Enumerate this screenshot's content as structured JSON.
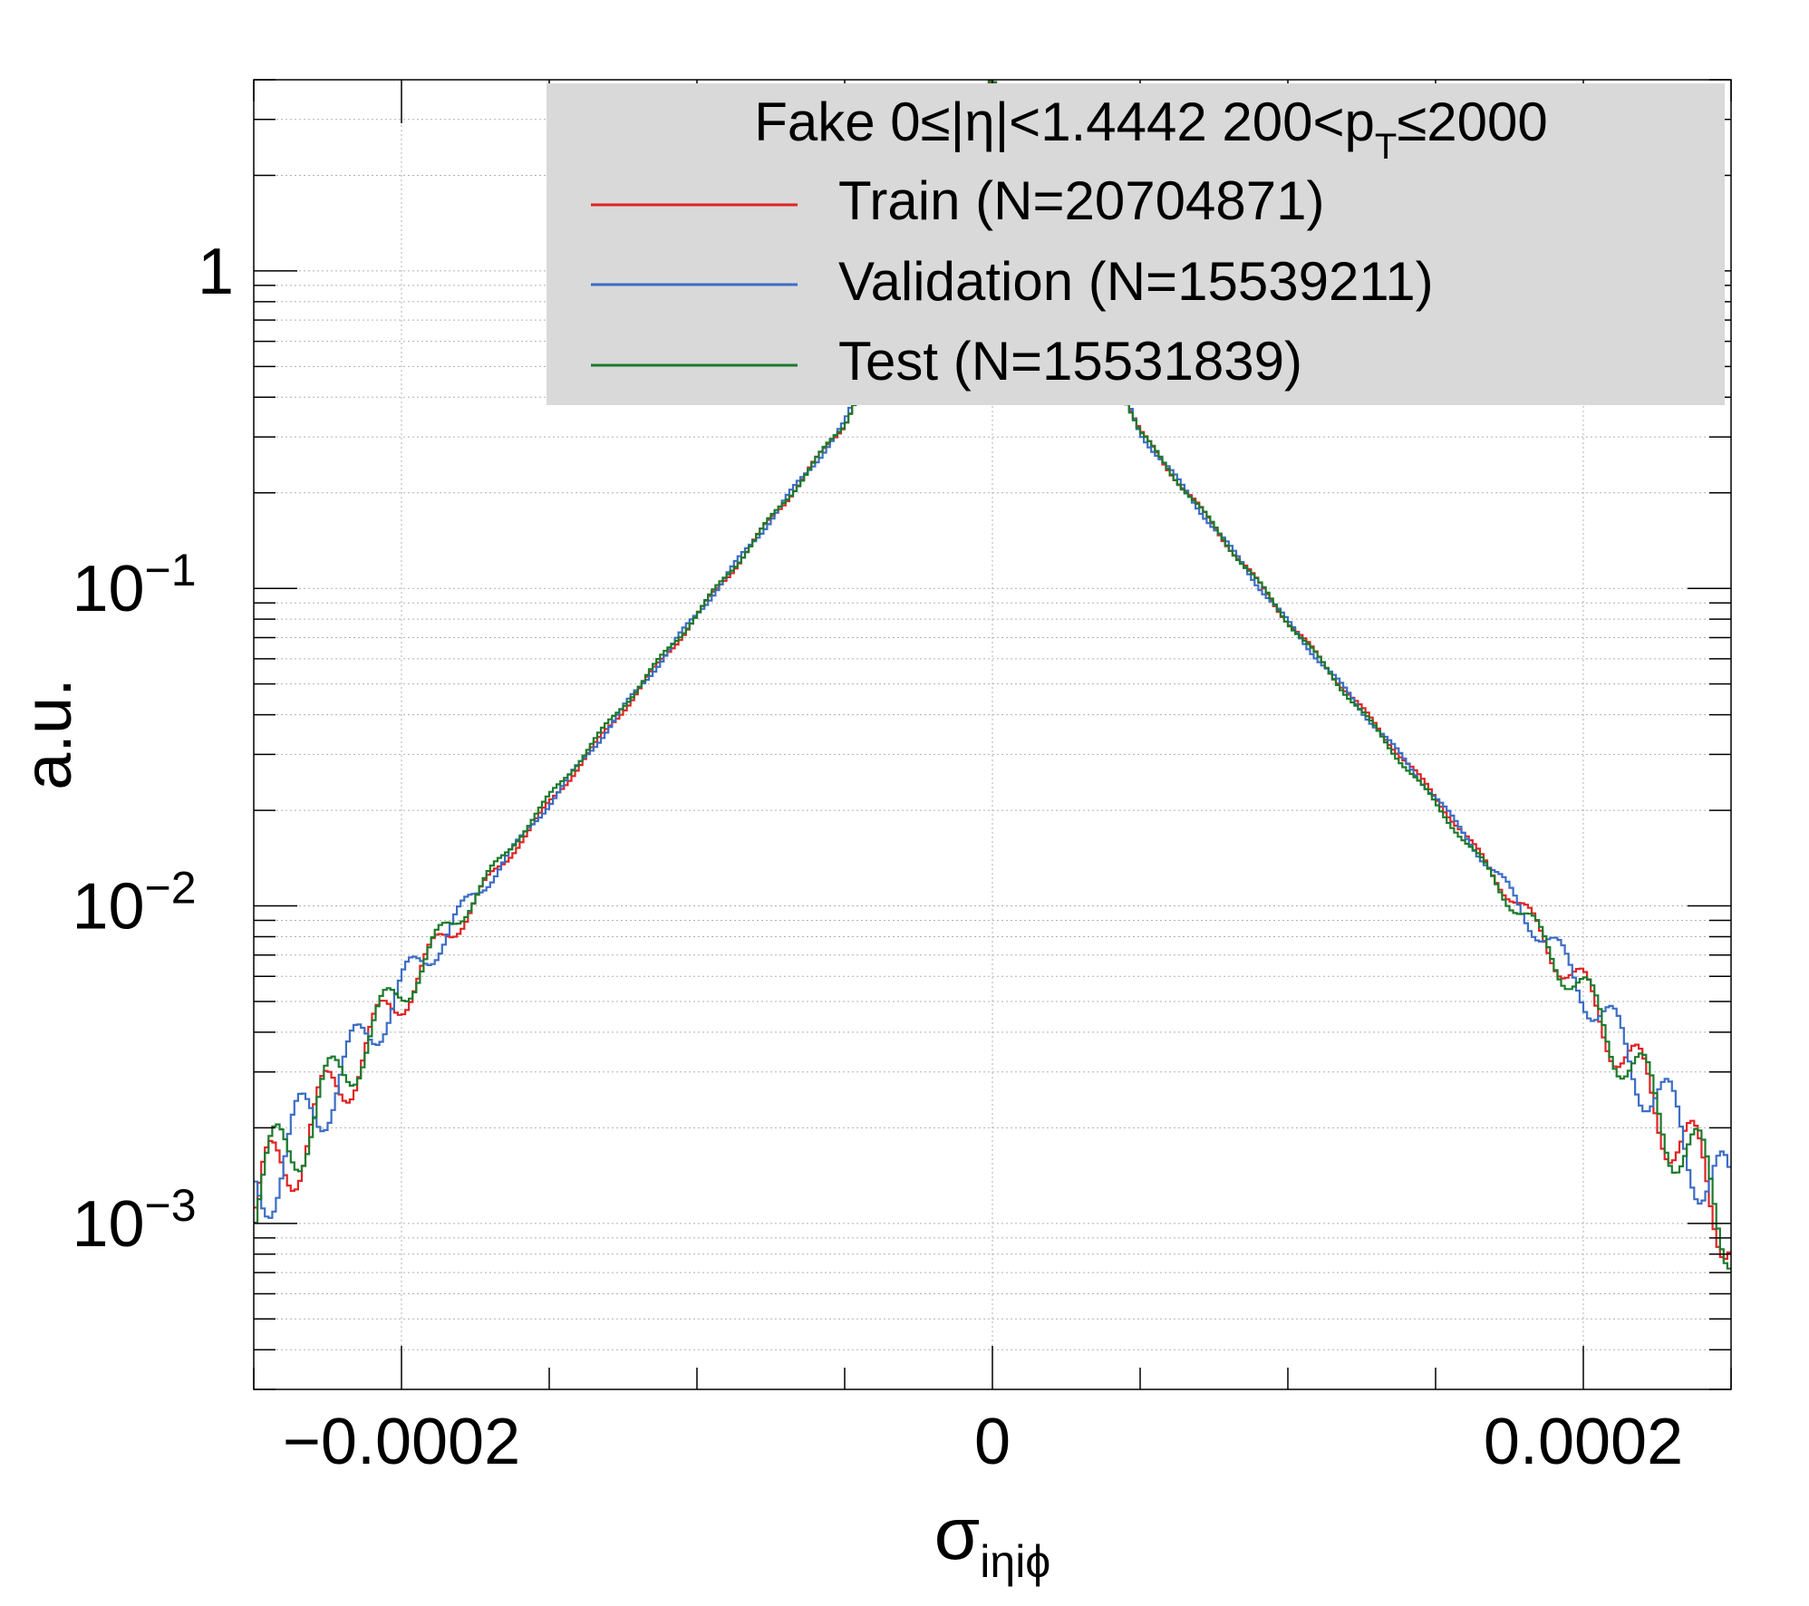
{
  "chart_data": {
    "type": "line",
    "title": "",
    "xlabel_main": "σ",
    "xlabel_sub": "iηiϕ",
    "ylabel": "a.u.",
    "x_range": [
      -0.00025,
      0.00025
    ],
    "y_range": [
      0.0003,
      4.0
    ],
    "y_scale": "log",
    "grid": true,
    "x_ticks": [
      {
        "value": -0.0002,
        "label": "−0.0002"
      },
      {
        "value": 0,
        "label": "0"
      },
      {
        "value": 0.0002,
        "label": "0.0002"
      }
    ],
    "y_ticks": [
      {
        "value": 0.001,
        "base": "10",
        "exp": "−3"
      },
      {
        "value": 0.01,
        "base": "10",
        "exp": "−2"
      },
      {
        "value": 0.1,
        "base": "10",
        "exp": "−1"
      },
      {
        "value": 1,
        "base": "1",
        "exp": ""
      }
    ],
    "legend": {
      "placement": "top-right",
      "header_main": "Fake  0≤|η|<1.4442  200<p",
      "header_sub": "T",
      "header_tail": "≤2000",
      "entries": [
        {
          "label": "Train (N=20704871)",
          "color": "#e02424"
        },
        {
          "label": "Validation (N=15539211)",
          "color": "#3c6dc5"
        },
        {
          "label": "Test (N=15531839)",
          "color": "#1c7a2c"
        }
      ]
    },
    "x": [
      -0.00025,
      -0.0002,
      -0.00015,
      -0.0001,
      -5e-05,
      0,
      5e-05,
      0.0001,
      0.00015,
      0.0002,
      0.00025
    ],
    "series": [
      {
        "name": "Train (N=20704871)",
        "color": "#e02424",
        "values": [
          0.0011,
          0.0052,
          0.021,
          0.082,
          0.33,
          4.0,
          0.31,
          0.079,
          0.022,
          0.0054,
          0.001
        ]
      },
      {
        "name": "Validation (N=15539211)",
        "color": "#3c6dc5",
        "values": [
          0.0012,
          0.0055,
          0.021,
          0.083,
          0.33,
          4.0,
          0.31,
          0.078,
          0.022,
          0.0055,
          0.0011
        ]
      },
      {
        "name": "Test (N=15531839)",
        "color": "#1c7a2c",
        "values": [
          0.0012,
          0.0054,
          0.022,
          0.083,
          0.33,
          4.0,
          0.31,
          0.079,
          0.021,
          0.0053,
          0.001
        ]
      }
    ]
  }
}
